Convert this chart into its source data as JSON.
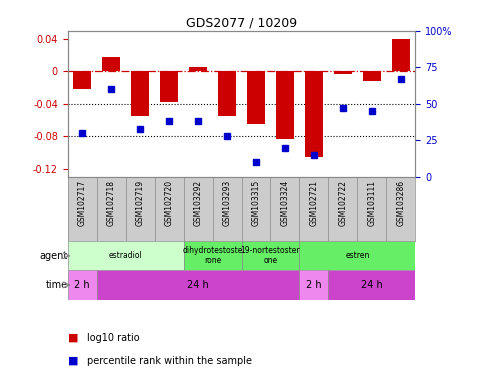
{
  "title": "GDS2077 / 10209",
  "samples": [
    "GSM102717",
    "GSM102718",
    "GSM102719",
    "GSM102720",
    "GSM103292",
    "GSM103293",
    "GSM103315",
    "GSM103324",
    "GSM102721",
    "GSM102722",
    "GSM103111",
    "GSM103286"
  ],
  "log10_ratio": [
    -0.022,
    0.018,
    -0.055,
    -0.038,
    0.005,
    -0.055,
    -0.065,
    -0.084,
    -0.105,
    -0.003,
    -0.012,
    0.04
  ],
  "percentile": [
    30,
    60,
    33,
    38,
    38,
    28,
    10,
    20,
    15,
    47,
    45,
    67
  ],
  "ylim": [
    -0.13,
    0.05
  ],
  "yticks_left": [
    -0.12,
    -0.08,
    -0.04,
    0,
    0.04
  ],
  "yticks_right": [
    0,
    25,
    50,
    75,
    100
  ],
  "bar_color": "#cc0000",
  "dot_color": "#0000cc",
  "agent_groups": [
    {
      "label": "estradiol",
      "start": 0,
      "end": 4,
      "color": "#ccffcc"
    },
    {
      "label": "dihydrotestoste\nrone",
      "start": 4,
      "end": 6,
      "color": "#66ee66"
    },
    {
      "label": "19-nortestoster\none",
      "start": 6,
      "end": 8,
      "color": "#66ee66"
    },
    {
      "label": "estren",
      "start": 8,
      "end": 12,
      "color": "#66ee66"
    }
  ],
  "time_groups": [
    {
      "label": "2 h",
      "start": 0,
      "end": 1,
      "color": "#ee88ee"
    },
    {
      "label": "24 h",
      "start": 1,
      "end": 8,
      "color": "#cc44cc"
    },
    {
      "label": "2 h",
      "start": 8,
      "end": 9,
      "color": "#ee88ee"
    },
    {
      "label": "24 h",
      "start": 9,
      "end": 12,
      "color": "#cc44cc"
    }
  ],
  "legend_red_label": "log10 ratio",
  "legend_blue_label": "percentile rank within the sample",
  "bg_color": "#ffffff",
  "tick_label_color_left": "#cc0000",
  "tick_label_color_right": "#0000cc",
  "label_bg": "#cccccc"
}
